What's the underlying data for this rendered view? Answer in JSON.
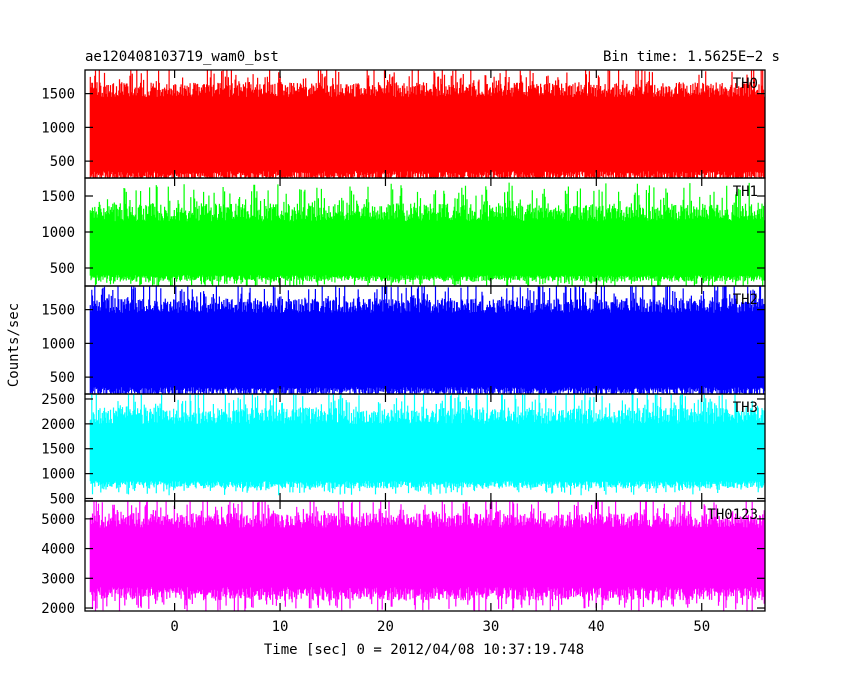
{
  "header": {
    "title": "ae120408103719_wam0_bst",
    "bin_time": "Bin time: 1.5625E−2 s"
  },
  "axes": {
    "ylabel": "Counts/sec",
    "xlabel": "Time [sec] 0 = 2012/04/08 10:37:19.748"
  },
  "chart_data": [
    {
      "type": "line",
      "name": "TH0",
      "color": "#ff0000",
      "ylim": [
        250,
        1850
      ],
      "yticks": [
        500,
        1000,
        1500
      ],
      "ytick_labels": [
        "500",
        "1000",
        "1500"
      ],
      "xlim": [
        -8.5,
        56
      ],
      "x_range": [
        -8,
        56
      ],
      "typical_range": [
        100,
        1850
      ],
      "core_range": [
        350,
        1450
      ]
    },
    {
      "type": "line",
      "name": "TH1",
      "color": "#00ff00",
      "ylim": [
        250,
        1750
      ],
      "yticks": [
        500,
        1000,
        1500
      ],
      "ytick_labels": [
        "500",
        "1000",
        "1500"
      ],
      "xlim": [
        -8.5,
        56
      ],
      "x_range": [
        -8,
        56
      ],
      "typical_range": [
        250,
        1600
      ],
      "core_range": [
        400,
        1150
      ]
    },
    {
      "type": "line",
      "name": "TH2",
      "color": "#0000ff",
      "ylim": [
        250,
        1850
      ],
      "yticks": [
        500,
        1000,
        1500
      ],
      "ytick_labels": [
        "500",
        "1000",
        "1500"
      ],
      "xlim": [
        -8.5,
        56
      ],
      "x_range": [
        -8,
        56
      ],
      "typical_range": [
        150,
        1850
      ],
      "core_range": [
        350,
        1450
      ]
    },
    {
      "type": "line",
      "name": "TH3",
      "color": "#00ffff",
      "ylim": [
        450,
        2600
      ],
      "yticks": [
        500,
        1000,
        1500,
        2000,
        2500
      ],
      "ytick_labels": [
        "500",
        "1000",
        "1500",
        "2000",
        "2500"
      ],
      "xlim": [
        -8.5,
        56
      ],
      "x_range": [
        -8,
        56
      ],
      "typical_range": [
        600,
        2600
      ],
      "core_range": [
        850,
        2000
      ]
    },
    {
      "type": "line",
      "name": "TH0123",
      "color": "#ff00ff",
      "ylim": [
        1900,
        5600
      ],
      "yticks": [
        2000,
        3000,
        4000,
        5000
      ],
      "ytick_labels": [
        "2000",
        "3000",
        "4000",
        "5000"
      ],
      "xlim": [
        -8.5,
        56
      ],
      "x_range": [
        -8,
        56
      ],
      "typical_range": [
        1950,
        5600
      ],
      "core_range": [
        2700,
        4700
      ]
    }
  ],
  "xaxis": {
    "ticks": [
      0,
      10,
      20,
      30,
      40,
      50
    ],
    "tick_labels": [
      "0",
      "10",
      "20",
      "30",
      "40",
      "50"
    ],
    "grid": false
  }
}
